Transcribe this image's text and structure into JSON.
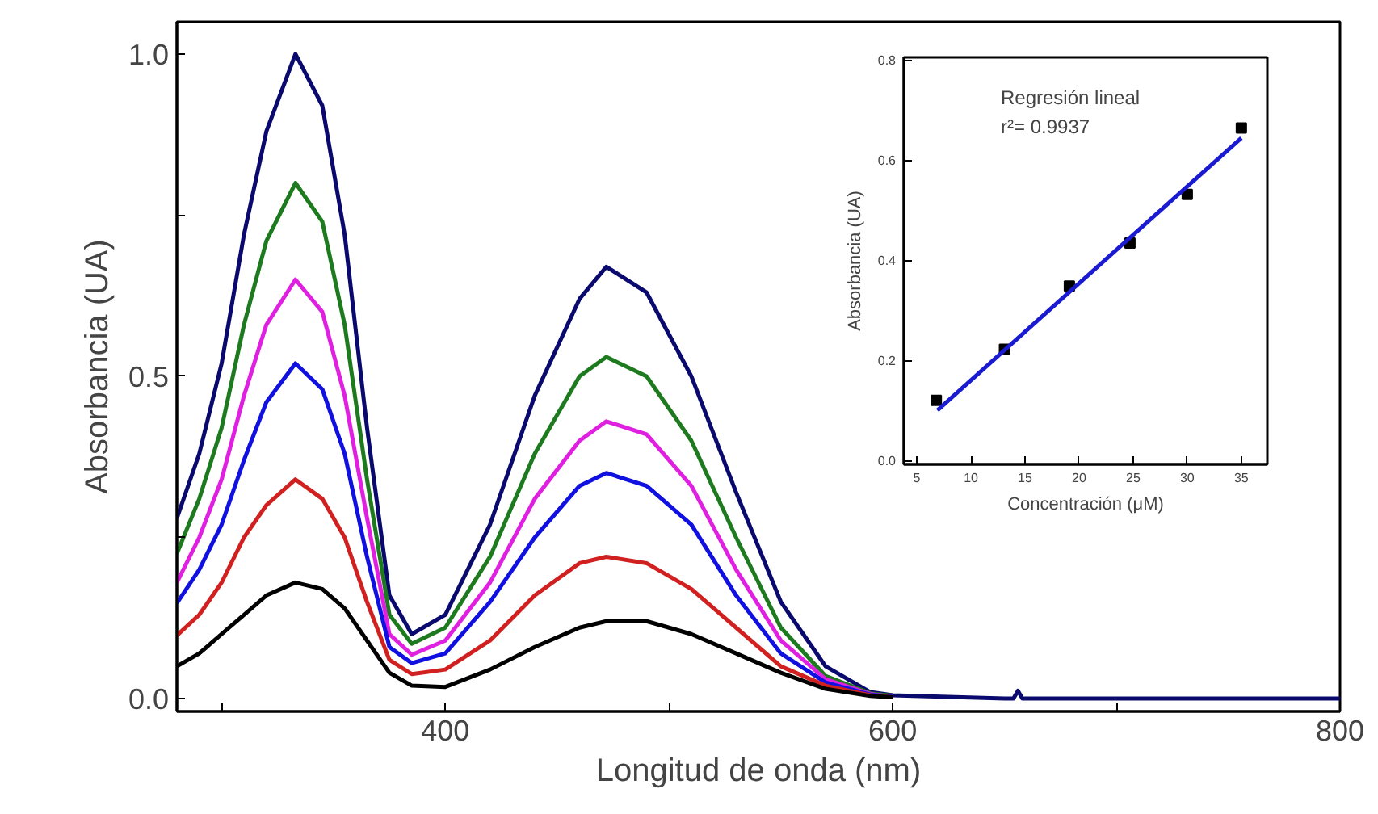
{
  "chart_data": [
    {
      "type": "line",
      "xlabel": "Longitud de onda (nm)",
      "ylabel": "Absorbancia (UA)",
      "x": [
        280,
        290,
        300,
        310,
        320,
        333,
        345,
        355,
        365,
        375,
        385,
        400,
        420,
        440,
        460,
        472,
        490,
        510,
        530,
        550,
        570,
        590,
        600,
        650,
        654,
        656,
        658,
        700,
        750,
        800
      ],
      "series": [
        {
          "color": "#0a0a6e",
          "values": [
            0.28,
            0.38,
            0.52,
            0.72,
            0.88,
            1.0,
            0.92,
            0.72,
            0.42,
            0.16,
            0.1,
            0.13,
            0.27,
            0.47,
            0.62,
            0.67,
            0.63,
            0.5,
            0.32,
            0.15,
            0.05,
            0.01,
            0.005,
            0,
            0,
            0.012,
            0,
            0,
            0,
            0
          ]
        },
        {
          "color": "#1e7a1e",
          "values": [
            0.225,
            0.31,
            0.42,
            0.58,
            0.71,
            0.8,
            0.74,
            0.58,
            0.34,
            0.13,
            0.085,
            0.11,
            0.22,
            0.38,
            0.5,
            0.53,
            0.5,
            0.4,
            0.25,
            0.11,
            0.035,
            0.008,
            0.004,
            null,
            null,
            null,
            null,
            null,
            null,
            null
          ]
        },
        {
          "color": "#e020e0",
          "values": [
            0.18,
            0.25,
            0.34,
            0.47,
            0.58,
            0.65,
            0.6,
            0.47,
            0.28,
            0.1,
            0.068,
            0.09,
            0.18,
            0.31,
            0.4,
            0.43,
            0.41,
            0.33,
            0.2,
            0.09,
            0.03,
            0.007,
            0.003,
            null,
            null,
            null,
            null,
            null,
            null,
            null
          ]
        },
        {
          "color": "#1010e0",
          "values": [
            0.148,
            0.2,
            0.27,
            0.37,
            0.46,
            0.52,
            0.48,
            0.38,
            0.22,
            0.08,
            0.055,
            0.07,
            0.15,
            0.25,
            0.33,
            0.35,
            0.33,
            0.27,
            0.16,
            0.07,
            0.025,
            0.006,
            0.003,
            null,
            null,
            null,
            null,
            null,
            null,
            null
          ]
        },
        {
          "color": "#d02020",
          "values": [
            0.098,
            0.13,
            0.18,
            0.25,
            0.3,
            0.34,
            0.31,
            0.25,
            0.15,
            0.06,
            0.038,
            0.045,
            0.09,
            0.16,
            0.21,
            0.22,
            0.21,
            0.17,
            0.11,
            0.05,
            0.02,
            0.005,
            0.002,
            null,
            null,
            null,
            null,
            null,
            null,
            null
          ]
        },
        {
          "color": "#000000",
          "values": [
            0.05,
            0.07,
            0.1,
            0.13,
            0.16,
            0.18,
            0.17,
            0.14,
            0.09,
            0.04,
            0.02,
            0.018,
            0.045,
            0.08,
            0.11,
            0.12,
            0.12,
            0.1,
            0.07,
            0.04,
            0.015,
            0.004,
            0.002,
            null,
            null,
            null,
            null,
            null,
            null,
            null
          ]
        }
      ],
      "xlim": [
        280,
        800
      ],
      "ylim": [
        -0.02,
        1.05
      ],
      "xticks": [
        {
          "value": 300,
          "label": null
        },
        400,
        {
          "value": 500,
          "label": null
        },
        600,
        {
          "value": 700,
          "label": null
        },
        800
      ],
      "yticks": [
        {
          "value": 0,
          "label": "0.0"
        },
        {
          "value": 0.25,
          "label": null
        },
        0.5,
        {
          "value": 0.75,
          "label": null
        },
        {
          "value": 1,
          "label": "1.0"
        }
      ],
      "grid": false
    },
    {
      "type": "scatter",
      "xlabel": "Concentración (μM)",
      "ylabel": "Absorbancia (UA)",
      "annotations": [
        "Regresión lineal",
        "r²= 0.9937"
      ],
      "series": [
        {
          "type": "scatter",
          "color": "#000000",
          "marker": "square",
          "x": [
            6.8,
            13.1,
            19.1,
            24.7,
            30.0,
            35.0
          ],
          "values": [
            0.12,
            0.222,
            0.348,
            0.434,
            0.531,
            0.664
          ]
        },
        {
          "type": "line",
          "color": "#1a1ad0",
          "x": [
            6.9,
            35.0
          ],
          "values": [
            0.1,
            0.644
          ]
        }
      ],
      "xlim": [
        3.8,
        37.4
      ],
      "ylim": [
        -0.008,
        0.805
      ],
      "xticks": [
        5,
        10,
        15,
        20,
        25,
        30,
        35
      ],
      "yticks": [
        {
          "value": 0,
          "label": "0.0"
        },
        {
          "value": 0.2,
          "label": "0.2"
        },
        {
          "value": 0.4,
          "label": "0.4"
        },
        {
          "value": 0.6,
          "label": "0.6"
        },
        {
          "value": 0.8,
          "label": "0.8"
        }
      ],
      "grid": false
    }
  ]
}
